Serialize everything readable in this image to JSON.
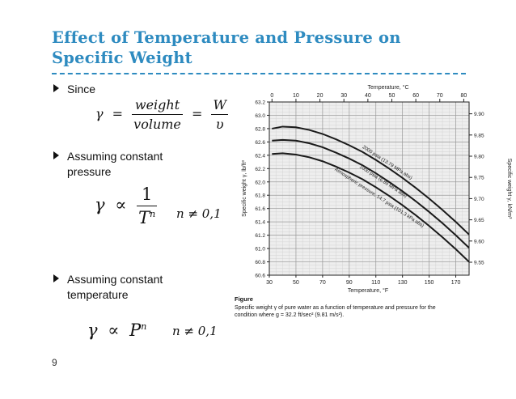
{
  "slide": {
    "title_line1": "Effect of Temperature and Pressure on",
    "title_line2": "Specific Weight",
    "page_number": "9"
  },
  "bullets": [
    {
      "text": "Since"
    },
    {
      "text_line1": "Assuming constant",
      "text_line2": "pressure"
    },
    {
      "text_line1": "Assuming constant",
      "text_line2": "temperature"
    }
  ],
  "equations": {
    "gamma": "γ",
    "equals": "=",
    "weight": "weight",
    "volume": "volume",
    "W": "W",
    "upsilon": "υ",
    "proportional": "∝",
    "one": "1",
    "T": "T",
    "P": "P",
    "n": "n",
    "condition": "n ≠ 0,1"
  },
  "figure": {
    "caption_title": "Figure",
    "caption_line1": "Specific weight γ of pure water as a function of temperature and pressure for the",
    "caption_line2": "condition where g = 32.2 ft/sec² (9.81 m/s²)."
  },
  "chart_data": {
    "type": "line",
    "title": "",
    "xlabel": "Temperature, °F",
    "ylabel": "Specific weight γ, lb/ft³",
    "top_axis_label": "Temperature, °C",
    "right_axis_label": "Specific weight γ, kN/m³",
    "xlim": [
      30,
      180
    ],
    "ylim": [
      60.6,
      63.2
    ],
    "x_ticks": [
      30,
      50,
      70,
      90,
      110,
      130,
      150,
      170
    ],
    "y_ticks": [
      60.6,
      60.8,
      61.0,
      61.2,
      61.4,
      61.6,
      61.8,
      62.0,
      62.2,
      62.4,
      62.6,
      62.8,
      63.0,
      63.2
    ],
    "top_ticks_c": [
      0,
      10,
      20,
      30,
      40,
      50,
      60,
      70,
      80
    ],
    "right_ticks_kn": [
      9.55,
      9.6,
      9.65,
      9.7,
      9.75,
      9.8,
      9.85,
      9.9
    ],
    "grid": true,
    "x": [
      32,
      40,
      50,
      60,
      70,
      80,
      90,
      100,
      110,
      120,
      130,
      140,
      150,
      160,
      170,
      180
    ],
    "series": [
      {
        "name": "2000 psia (13.79 MPa abs)",
        "values": [
          62.8,
          62.83,
          62.82,
          62.78,
          62.72,
          62.64,
          62.55,
          62.45,
          62.33,
          62.2,
          62.06,
          61.91,
          61.75,
          61.58,
          61.4,
          61.21
        ]
      },
      {
        "name": "1000 psia (6.89 MPa abs)",
        "values": [
          62.62,
          62.63,
          62.62,
          62.58,
          62.52,
          62.44,
          62.35,
          62.25,
          62.13,
          62.0,
          61.86,
          61.71,
          61.55,
          61.38,
          61.2,
          61.01
        ]
      },
      {
        "name": "Atmospheric pressure, 14.7 psia (101.3 kPa abs)",
        "values": [
          62.42,
          62.43,
          62.41,
          62.37,
          62.31,
          62.23,
          62.14,
          62.04,
          61.92,
          61.79,
          61.65,
          61.5,
          61.34,
          61.17,
          60.99,
          60.8
        ]
      }
    ]
  }
}
